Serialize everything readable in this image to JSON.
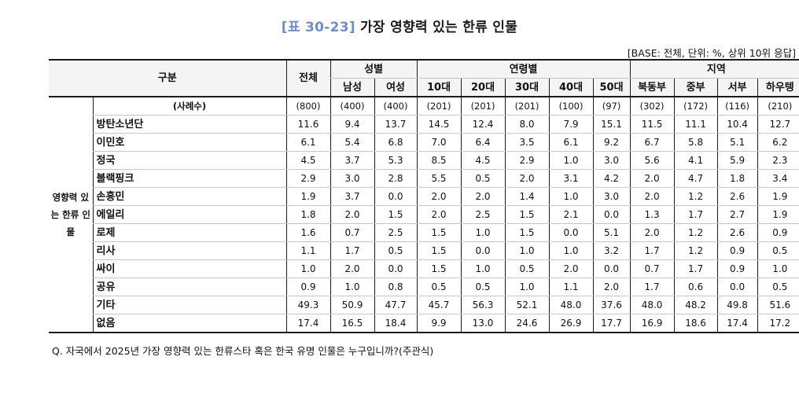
{
  "title": {
    "tag": "[표 30-23]",
    "text": "가장 영향력 있는 한류 인물"
  },
  "base_note": "[BASE: 전체, 단위: %, 상위 10위 응답]",
  "header": {
    "gubun": "구분",
    "total": "전체",
    "gender_group": "성별",
    "age_group": "연령별",
    "region_group": "지역",
    "gender": [
      "남성",
      "여성"
    ],
    "age": [
      "10대",
      "20대",
      "30대",
      "40대",
      "50대"
    ],
    "region": [
      "북동부",
      "중부",
      "서부",
      "하우텡"
    ]
  },
  "group_label": "영향력 있는 한류 인물",
  "rows": [
    {
      "name": "(사례수)",
      "values": [
        "(800)",
        "(400)",
        "(400)",
        "(201)",
        "(201)",
        "(201)",
        "(100)",
        "(97)",
        "(302)",
        "(172)",
        "(116)",
        "(210)"
      ]
    },
    {
      "name": "방탄소년단",
      "values": [
        "11.6",
        "9.4",
        "13.7",
        "14.5",
        "12.4",
        "8.0",
        "7.9",
        "15.1",
        "11.5",
        "11.1",
        "10.4",
        "12.7"
      ]
    },
    {
      "name": "이민호",
      "values": [
        "6.1",
        "5.4",
        "6.8",
        "7.0",
        "6.4",
        "3.5",
        "6.1",
        "9.2",
        "6.7",
        "5.8",
        "5.1",
        "6.2"
      ]
    },
    {
      "name": "정국",
      "values": [
        "4.5",
        "3.7",
        "5.3",
        "8.5",
        "4.5",
        "2.9",
        "1.0",
        "3.0",
        "5.6",
        "4.1",
        "5.9",
        "2.3"
      ]
    },
    {
      "name": "블랙핑크",
      "values": [
        "2.9",
        "3.0",
        "2.8",
        "5.5",
        "0.5",
        "2.0",
        "3.1",
        "4.2",
        "2.0",
        "4.7",
        "1.8",
        "3.4"
      ]
    },
    {
      "name": "손흥민",
      "values": [
        "1.9",
        "3.7",
        "0.0",
        "2.0",
        "2.0",
        "1.4",
        "1.0",
        "3.0",
        "2.0",
        "1.2",
        "2.6",
        "1.9"
      ]
    },
    {
      "name": "에일리",
      "values": [
        "1.8",
        "2.0",
        "1.5",
        "2.0",
        "2.5",
        "1.5",
        "2.1",
        "0.0",
        "1.3",
        "1.7",
        "2.7",
        "1.9"
      ]
    },
    {
      "name": "로제",
      "values": [
        "1.6",
        "0.7",
        "2.5",
        "1.5",
        "1.0",
        "1.5",
        "0.0",
        "5.1",
        "2.0",
        "1.2",
        "2.6",
        "0.9"
      ]
    },
    {
      "name": "리사",
      "values": [
        "1.1",
        "1.7",
        "0.5",
        "1.5",
        "0.0",
        "1.0",
        "1.0",
        "3.2",
        "1.7",
        "1.2",
        "0.9",
        "0.5"
      ]
    },
    {
      "name": "싸이",
      "values": [
        "1.0",
        "2.0",
        "0.0",
        "1.5",
        "1.0",
        "0.5",
        "2.0",
        "0.0",
        "0.7",
        "1.7",
        "0.9",
        "1.0"
      ]
    },
    {
      "name": "공유",
      "values": [
        "0.9",
        "1.0",
        "0.8",
        "0.5",
        "0.5",
        "1.0",
        "1.1",
        "2.0",
        "1.7",
        "0.6",
        "0.0",
        "0.5"
      ]
    },
    {
      "name": "기타",
      "values": [
        "49.3",
        "50.9",
        "47.7",
        "45.7",
        "56.3",
        "52.1",
        "48.0",
        "37.6",
        "48.0",
        "48.2",
        "49.8",
        "51.6"
      ]
    },
    {
      "name": "없음",
      "values": [
        "17.4",
        "16.5",
        "18.4",
        "9.9",
        "13.0",
        "24.6",
        "26.9",
        "17.7",
        "16.9",
        "18.6",
        "17.4",
        "17.2"
      ]
    }
  ],
  "question": "Q. 자국에서 2025년 가장 영향력 있는 한류스타 혹은 한국 유명 인물은 누구입니까?(주관식)"
}
